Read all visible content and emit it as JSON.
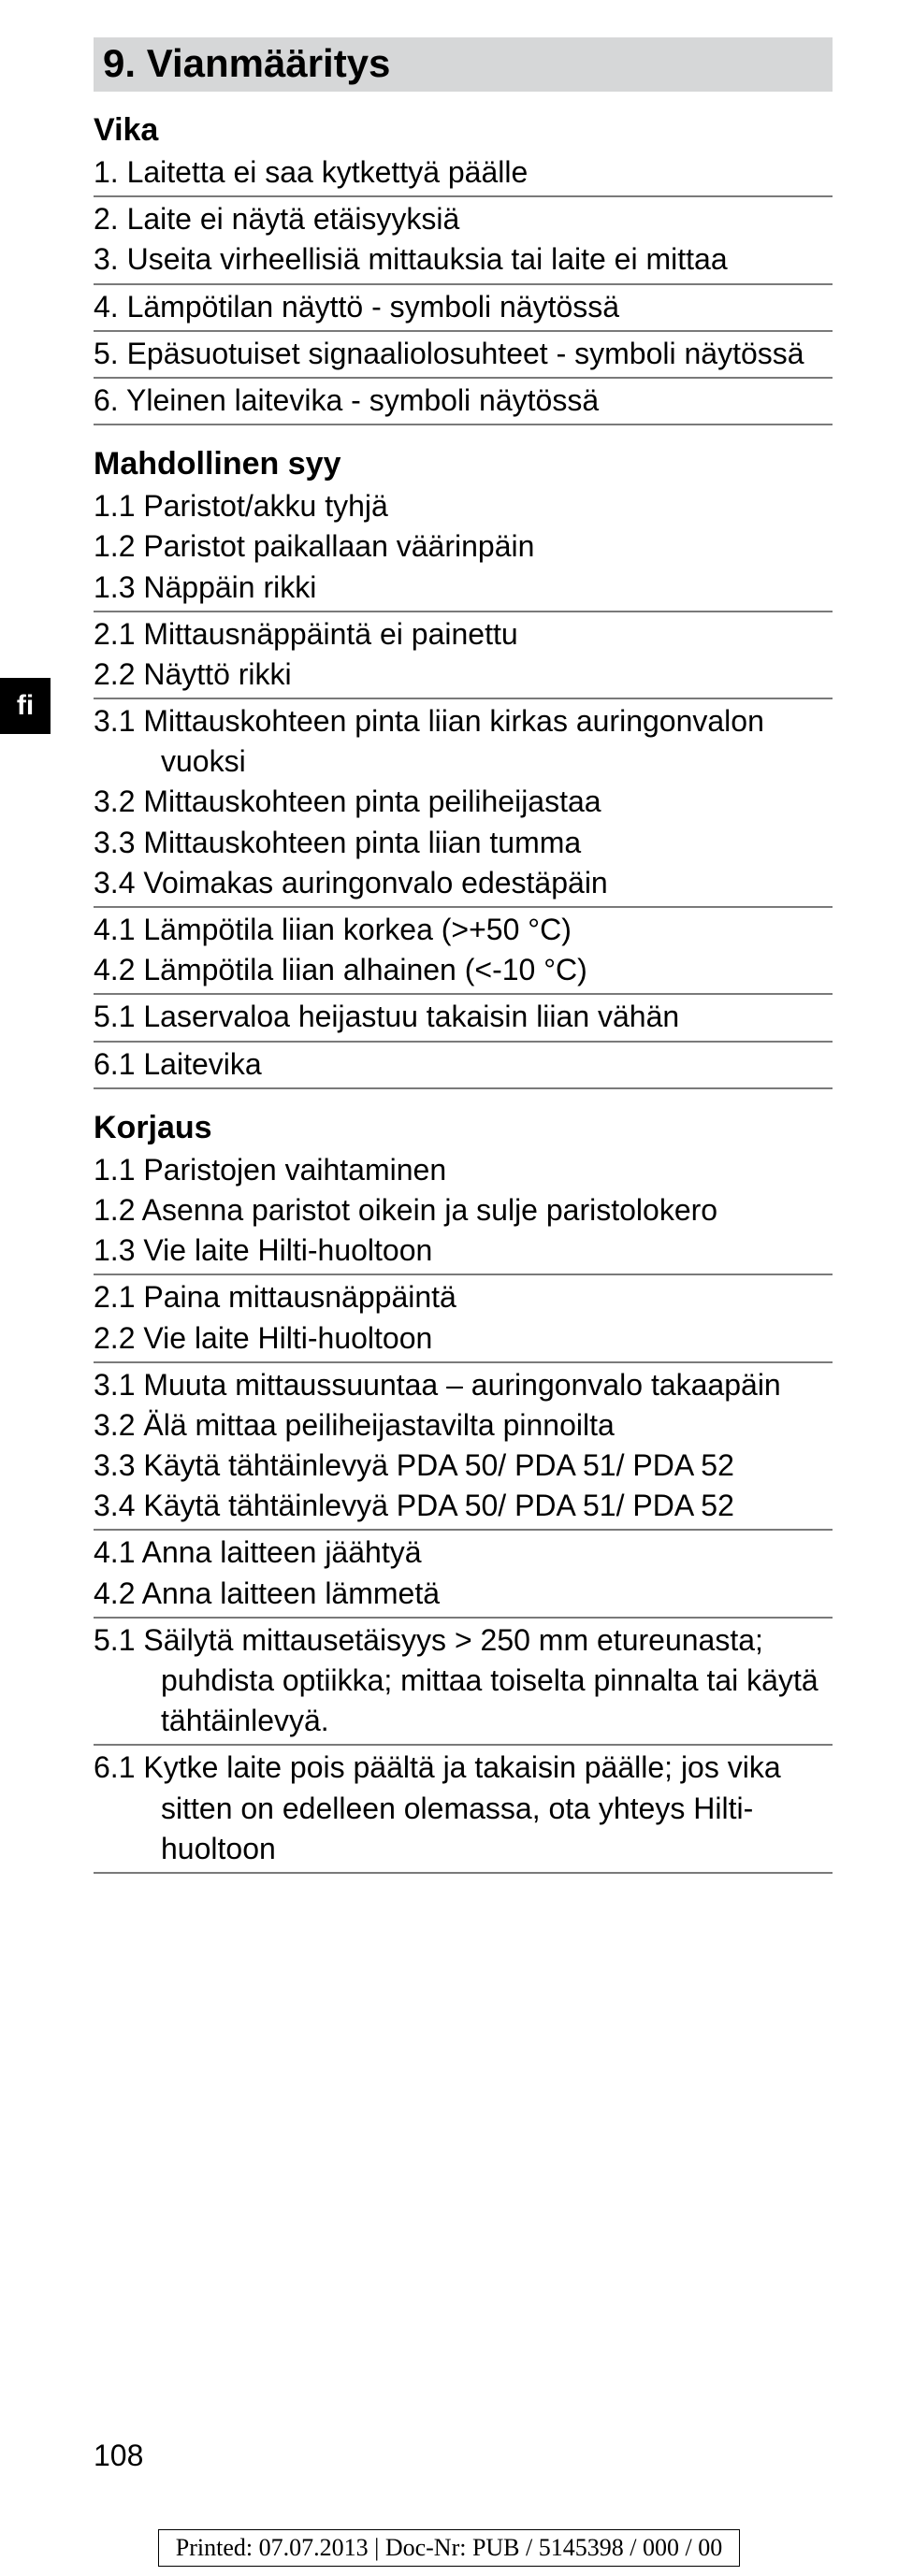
{
  "lang": "fi",
  "section": {
    "number": "9.",
    "title": "Vianmääritys"
  },
  "blocks": [
    {
      "heading": "Vika",
      "groups": [
        [
          "1. Laitetta ei saa kytkettyä päälle"
        ],
        [
          "2. Laite ei näytä etäisyyksiä",
          "3. Useita virheellisiä mittauksia tai laite ei mittaa"
        ],
        [
          "4. Lämpötilan näyttö - symboli näytössä"
        ],
        [
          "5. Epäsuotuiset signaaliolosuhteet - symboli näytössä"
        ],
        [
          "6. Yleinen laitevika - symboli näytössä"
        ]
      ]
    },
    {
      "heading": "Mahdollinen syy",
      "groups": [
        [
          "1.1 Paristot/akku tyhjä",
          "1.2 Paristot paikallaan väärinpäin",
          "1.3 Näppäin rikki"
        ],
        [
          "2.1 Mittausnäppäintä ei painettu",
          "2.2 Näyttö rikki"
        ],
        [
          "3.1 Mittauskohteen pinta liian kirkas auringonvalon vuoksi",
          "3.2 Mittauskohteen pinta peiliheijastaa",
          "3.3 Mittauskohteen pinta liian tumma",
          "3.4 Voimakas auringonvalo edestäpäin"
        ],
        [
          "4.1 Lämpötila liian korkea (>+50 °C)",
          "4.2 Lämpötila liian alhainen (<-10 °C)"
        ],
        [
          "5.1 Laservaloa heijastuu takaisin liian vähän"
        ],
        [
          "6.1 Laitevika"
        ]
      ]
    },
    {
      "heading": "Korjaus",
      "groups": [
        [
          "1.1 Paristojen vaihtaminen",
          "1.2 Asenna paristot oikein ja sulje paristolokero",
          "1.3 Vie laite Hilti-huoltoon"
        ],
        [
          "2.1 Paina mittausnäppäintä",
          "2.2 Vie laite Hilti-huoltoon"
        ],
        [
          "3.1 Muuta mittaussuuntaa – auringonvalo takaapäin",
          "3.2 Älä mittaa peiliheijastavilta pinnoilta",
          "3.3 Käytä tähtäinlevyä PDA 50/ PDA 51/ PDA 52",
          "3.4 Käytä tähtäinlevyä PDA 50/ PDA 51/ PDA 52"
        ],
        [
          "4.1 Anna laitteen jäähtyä",
          "4.2 Anna laitteen lämmetä"
        ],
        [
          "5.1 Säilytä mittausetäisyys > 250 mm etureunasta; puhdista optiikka; mittaa toiselta pinnalta tai käytä tähtäinlevyä."
        ],
        [
          "6.1 Kytke laite pois päältä ja takaisin päälle; jos vika sitten on edelleen olemassa, ota yhteys Hilti-huoltoon"
        ]
      ]
    }
  ],
  "pageNumber": "108",
  "footer": "Printed: 07.07.2013 | Doc-Nr: PUB / 5145398 / 000 / 00"
}
